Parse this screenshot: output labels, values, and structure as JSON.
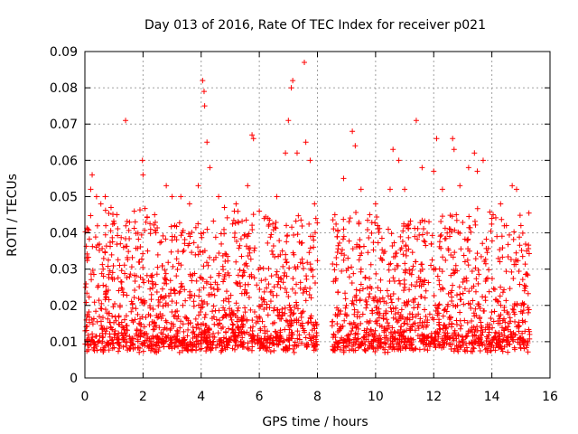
{
  "chart_data": {
    "type": "scatter",
    "title": "Day 013 of 2016, Rate Of TEC Index for receiver p021",
    "xlabel": "GPS time / hours",
    "ylabel": "ROTI / TECUs",
    "xlim": [
      0,
      16
    ],
    "ylim": [
      0,
      0.09
    ],
    "x_ticks": [
      0,
      2,
      4,
      6,
      8,
      10,
      12,
      14,
      16
    ],
    "x_tick_labels": [
      "0",
      "2",
      "4",
      "6",
      "8",
      "10",
      "12",
      "14",
      "16"
    ],
    "y_ticks": [
      0,
      0.01,
      0.02,
      0.03,
      0.04,
      0.05,
      0.06,
      0.07,
      0.08,
      0.09
    ],
    "y_tick_labels": [
      "0",
      "0.01",
      "0.02",
      "0.03",
      "0.04",
      "0.05",
      "0.06",
      "0.07",
      "0.08",
      "0.09"
    ],
    "grid": true,
    "marker": "+",
    "color": "#ff0000",
    "data_gap_hours": [
      8.0,
      8.5
    ],
    "series": [
      {
        "name": "ROTI",
        "points": [
          [
            0.05,
            0.016
          ],
          [
            0.1,
            0.041
          ],
          [
            0.2,
            0.052
          ],
          [
            0.25,
            0.056
          ],
          [
            0.4,
            0.05
          ],
          [
            0.55,
            0.048
          ],
          [
            0.7,
            0.05
          ],
          [
            0.9,
            0.047
          ],
          [
            1.1,
            0.045
          ],
          [
            1.4,
            0.071
          ],
          [
            1.7,
            0.046
          ],
          [
            1.98,
            0.06
          ],
          [
            2.0,
            0.056
          ],
          [
            2.4,
            0.045
          ],
          [
            2.8,
            0.053
          ],
          [
            3.0,
            0.05
          ],
          [
            3.3,
            0.05
          ],
          [
            3.6,
            0.048
          ],
          [
            3.9,
            0.053
          ],
          [
            4.05,
            0.082
          ],
          [
            4.1,
            0.079
          ],
          [
            4.12,
            0.075
          ],
          [
            4.2,
            0.065
          ],
          [
            4.3,
            0.058
          ],
          [
            4.6,
            0.05
          ],
          [
            4.8,
            0.047
          ],
          [
            5.2,
            0.048
          ],
          [
            5.6,
            0.053
          ],
          [
            5.75,
            0.067
          ],
          [
            5.8,
            0.066
          ],
          [
            6.0,
            0.046
          ],
          [
            6.3,
            0.044
          ],
          [
            6.6,
            0.05
          ],
          [
            6.9,
            0.062
          ],
          [
            7.0,
            0.071
          ],
          [
            7.1,
            0.08
          ],
          [
            7.15,
            0.082
          ],
          [
            7.3,
            0.062
          ],
          [
            7.55,
            0.087
          ],
          [
            7.6,
            0.065
          ],
          [
            7.75,
            0.06
          ],
          [
            7.9,
            0.048
          ],
          [
            8.6,
            0.045
          ],
          [
            8.9,
            0.055
          ],
          [
            9.2,
            0.068
          ],
          [
            9.3,
            0.064
          ],
          [
            9.5,
            0.052
          ],
          [
            9.8,
            0.045
          ],
          [
            10.0,
            0.048
          ],
          [
            10.5,
            0.052
          ],
          [
            10.6,
            0.063
          ],
          [
            10.8,
            0.06
          ],
          [
            11.0,
            0.052
          ],
          [
            11.4,
            0.071
          ],
          [
            11.6,
            0.058
          ],
          [
            12.0,
            0.057
          ],
          [
            12.1,
            0.066
          ],
          [
            12.3,
            0.052
          ],
          [
            12.65,
            0.066
          ],
          [
            12.7,
            0.063
          ],
          [
            12.9,
            0.053
          ],
          [
            13.2,
            0.058
          ],
          [
            13.4,
            0.062
          ],
          [
            13.5,
            0.057
          ],
          [
            13.7,
            0.06
          ],
          [
            14.0,
            0.044
          ],
          [
            14.3,
            0.048
          ],
          [
            14.5,
            0.042
          ],
          [
            14.7,
            0.053
          ],
          [
            14.85,
            0.052
          ],
          [
            15.0,
            0.042
          ],
          [
            15.2,
            0.035
          ],
          [
            15.3,
            0.012
          ]
        ]
      }
    ]
  }
}
